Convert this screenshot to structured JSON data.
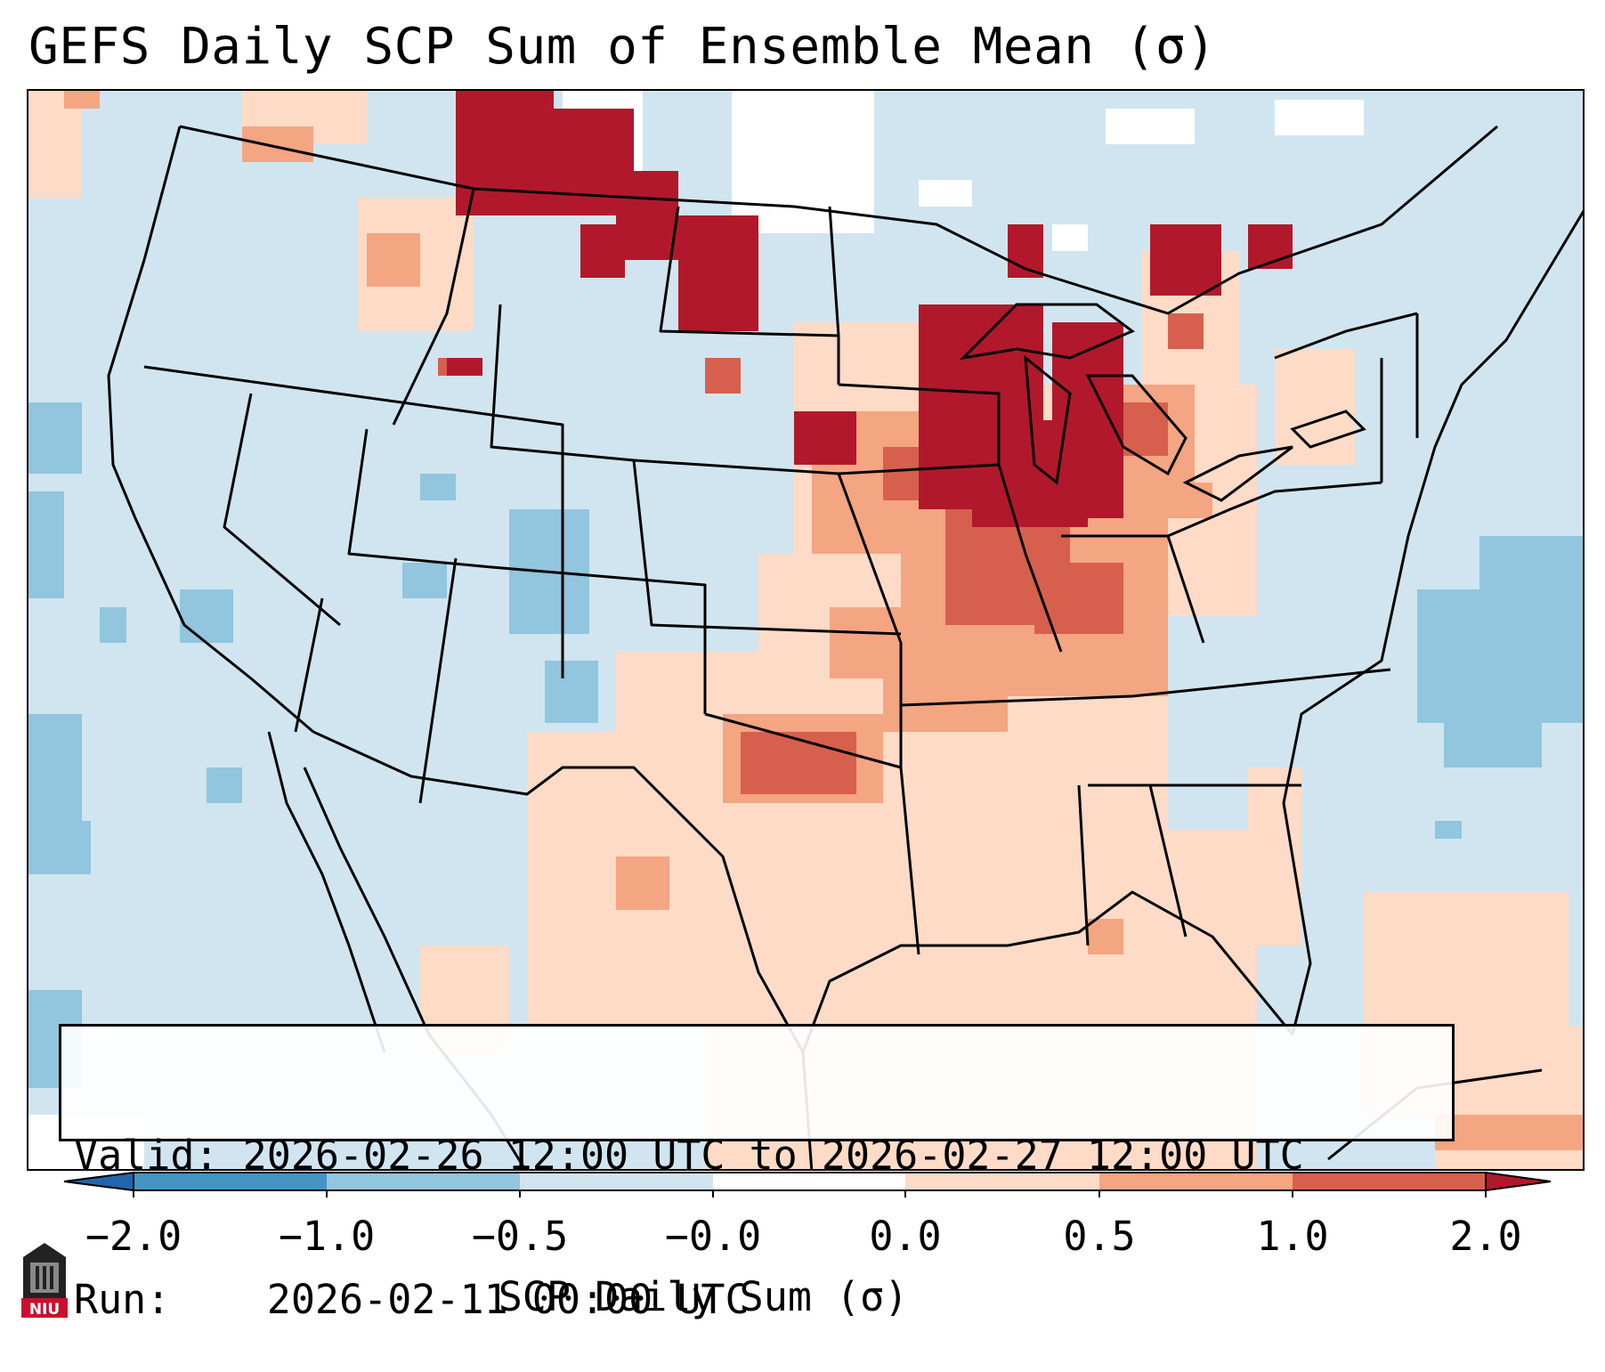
{
  "title": "GEFS Daily SCP Sum of Ensemble Mean (σ)",
  "info": {
    "valid_label": "Valid:",
    "valid_value": "2026-02-26 12:00 UTC to 2026-02-27 12:00 UTC",
    "run_label": "Run:  ",
    "run_value": "2026-02-11 00:00 UTC"
  },
  "colorbar": {
    "label": "SCP Daily Sum (σ)",
    "ticks": [
      "−2.0",
      "−1.0",
      "−0.5",
      "−0.0",
      "0.0",
      "0.5",
      "1.0",
      "2.0"
    ],
    "bins": [
      {
        "range": "< -2.0",
        "color": "#2166ac"
      },
      {
        "range": "-2.0 to -1.0",
        "color": "#4393c3"
      },
      {
        "range": "-1.0 to -0.5",
        "color": "#92c5de"
      },
      {
        "range": "-0.5 to -0.0",
        "color": "#d1e5f0"
      },
      {
        "range": "-0.0 to 0.0",
        "color": "#ffffff"
      },
      {
        "range": "0.0 to 0.5",
        "color": "#fddbc7"
      },
      {
        "range": "0.5 to 1.0",
        "color": "#f4a582"
      },
      {
        "range": "1.0 to 2.0",
        "color": "#d6604d"
      },
      {
        "range": "> 2.0",
        "color": "#b2182b"
      }
    ]
  },
  "logo": {
    "text": "NIU",
    "color": "#c8102e"
  }
}
